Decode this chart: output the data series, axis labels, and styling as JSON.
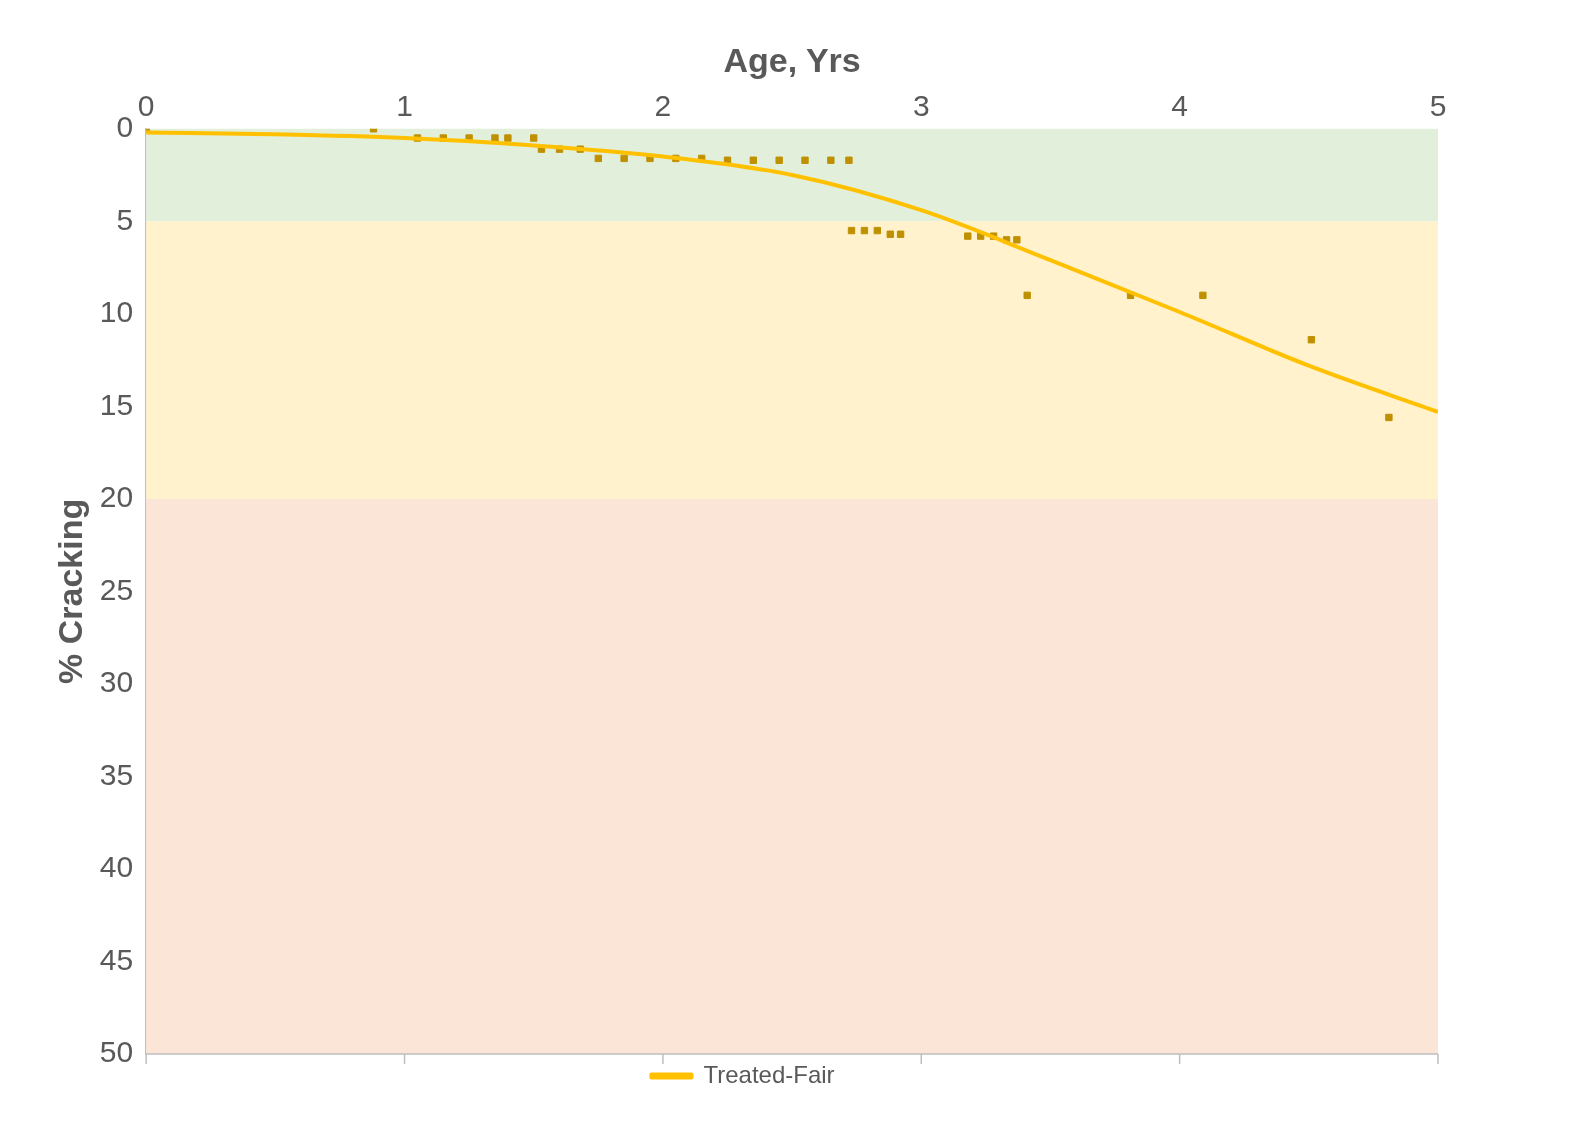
{
  "chart_data": {
    "type": "scatter",
    "xlabel": "Age, Yrs",
    "ylabel": "% Cracking",
    "xlim": [
      0,
      5
    ],
    "xticks": [
      0,
      1,
      2,
      3,
      4,
      5
    ],
    "ylim": [
      50,
      0
    ],
    "yticks": [
      0,
      5,
      10,
      15,
      20,
      25,
      30,
      35,
      40,
      45,
      50
    ],
    "grid": false,
    "legend": "bottom",
    "bands": [
      {
        "axis": "y",
        "from": 0,
        "to": 5,
        "color": "#e2efda"
      },
      {
        "axis": "y",
        "from": 5,
        "to": 20,
        "color": "#fff2cc"
      },
      {
        "axis": "y",
        "from": 20,
        "to": 50,
        "color": "#fbe5d6"
      }
    ],
    "series": [
      {
        "type": "scatter",
        "color": "#bf9000",
        "marker": "square",
        "x": [
          0,
          0.88,
          1.05,
          1.15,
          1.25,
          1.35,
          1.4,
          1.5,
          1.53,
          1.6,
          1.68,
          1.75,
          1.85,
          1.95,
          2.05,
          2.15,
          2.25,
          2.35,
          2.45,
          2.55,
          2.65,
          2.72,
          2.73,
          2.78,
          2.83,
          2.88,
          2.92,
          3.18,
          3.23,
          3.28,
          3.33,
          3.37,
          3.41,
          3.81,
          4.09,
          4.51,
          4.81
        ],
        "values": [
          0,
          0,
          0.5,
          0.5,
          0.5,
          0.5,
          0.5,
          0.5,
          1.1,
          1.1,
          1.1,
          1.6,
          1.6,
          1.6,
          1.6,
          1.6,
          1.7,
          1.7,
          1.7,
          1.7,
          1.7,
          1.7,
          5.5,
          5.5,
          5.5,
          5.7,
          5.7,
          5.8,
          5.8,
          5.8,
          6,
          6,
          9,
          9,
          9,
          11.4,
          15.6
        ]
      },
      {
        "type": "line",
        "name": "Treated-Fair",
        "color": "#ffc000",
        "marker": "none",
        "x": [
          0,
          0.5,
          1,
          1.5,
          2,
          2.5,
          3,
          3.5,
          4,
          4.5,
          5
        ],
        "values": [
          0.2,
          0.3,
          0.5,
          0.9,
          1.5,
          2.5,
          4.4,
          7.1,
          9.9,
          12.8,
          15.3
        ]
      }
    ]
  }
}
